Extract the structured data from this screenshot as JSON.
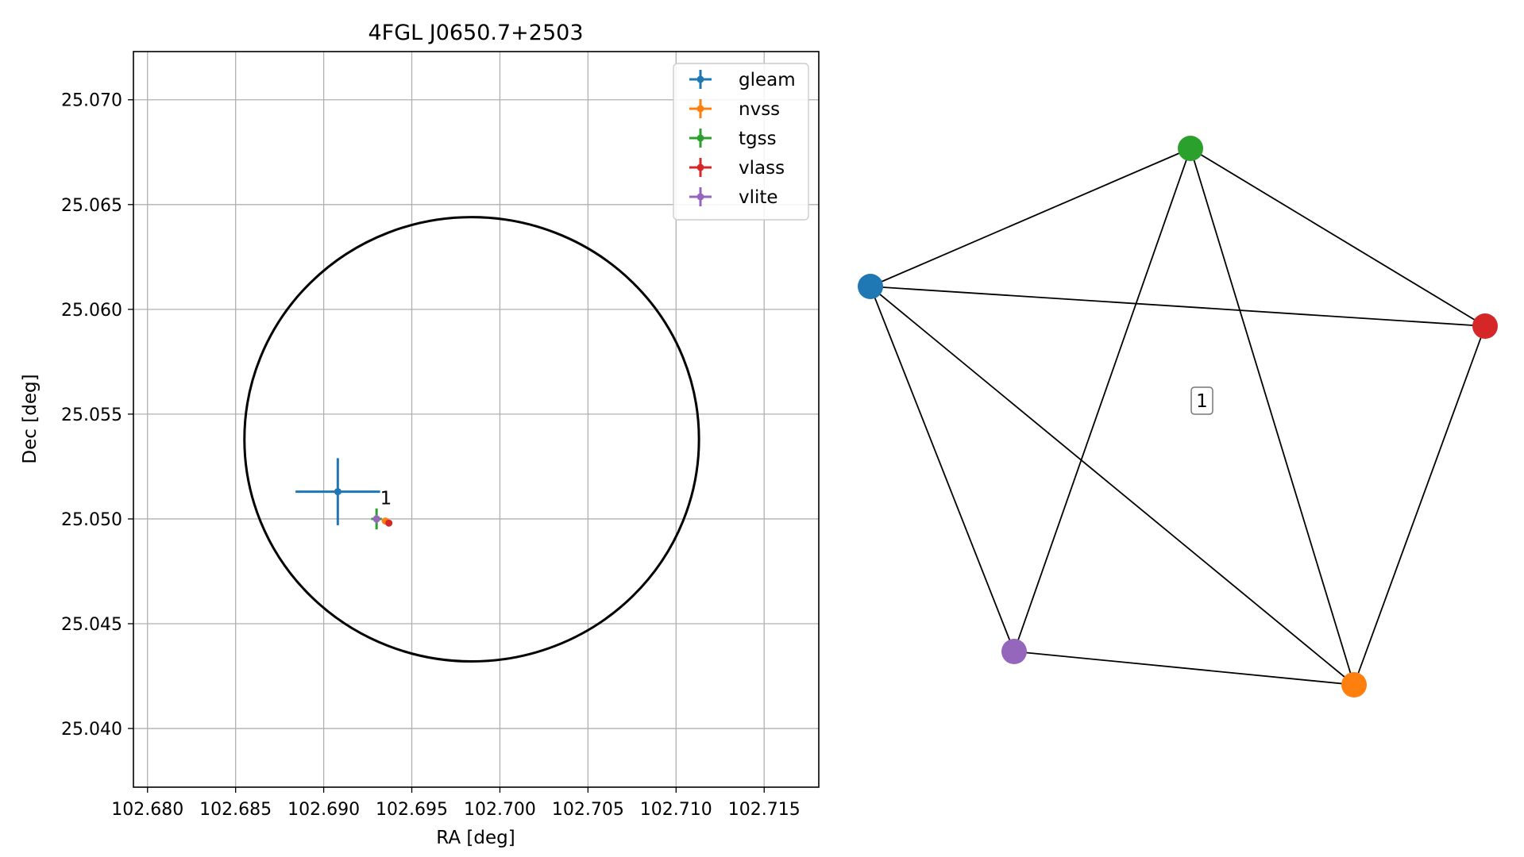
{
  "chart_data": [
    {
      "type": "scatter",
      "title": "4FGL J0650.7+2503",
      "xlabel": "RA [deg]",
      "ylabel": "Dec [deg]",
      "xlim": [
        102.6792,
        102.7181
      ],
      "ylim": [
        25.0372,
        25.0723
      ],
      "xticks": [
        102.68,
        102.685,
        102.69,
        102.695,
        102.7,
        102.705,
        102.71,
        102.715
      ],
      "xtick_labels": [
        "102.680",
        "102.685",
        "102.690",
        "102.695",
        "102.700",
        "102.705",
        "102.710",
        "102.715"
      ],
      "yticks": [
        25.04,
        25.045,
        25.05,
        25.055,
        25.06,
        25.065,
        25.07
      ],
      "ytick_labels": [
        "25.040",
        "25.045",
        "25.050",
        "25.055",
        "25.060",
        "25.065",
        "25.070"
      ],
      "grid": true,
      "legend_position": "top-right",
      "series": [
        {
          "name": "gleam",
          "color": "#1f77b4",
          "ra": 102.6908,
          "dec": 25.0513,
          "ra_err": 0.0024,
          "dec_err": 0.0016
        },
        {
          "name": "nvss",
          "color": "#ff7f0e",
          "ra": 102.6935,
          "dec": 25.0499,
          "ra_err": 0.0002,
          "dec_err": 0.0001
        },
        {
          "name": "tgss",
          "color": "#2ca02c",
          "ra": 102.693,
          "dec": 25.05,
          "ra_err": 0.0003,
          "dec_err": 0.0005
        },
        {
          "name": "vlass",
          "color": "#d62728",
          "ra": 102.6937,
          "dec": 25.0498,
          "ra_err": 0.0001,
          "dec_err": 0.0001
        },
        {
          "name": "vlite",
          "color": "#9467bd",
          "ra": 102.693,
          "dec": 25.05,
          "ra_err": 0.0002,
          "dec_err": 0.0002
        }
      ],
      "ellipse": {
        "center_ra": 102.6984,
        "center_dec": 25.0538,
        "half_width_ra": 0.0129,
        "half_height_dec": 0.0106,
        "color": "#000000"
      },
      "annotation": {
        "text": "1",
        "ra": 102.6932,
        "dec": 25.0507
      }
    },
    {
      "type": "network",
      "nodes": [
        {
          "id": "gleam",
          "color": "#1f77b4"
        },
        {
          "id": "tgss",
          "color": "#2ca02c"
        },
        {
          "id": "vlass",
          "color": "#d62728"
        },
        {
          "id": "nvss",
          "color": "#ff7f0e"
        },
        {
          "id": "vlite",
          "color": "#9467bd"
        }
      ],
      "edges": [
        [
          "gleam",
          "tgss"
        ],
        [
          "gleam",
          "vlass"
        ],
        [
          "gleam",
          "nvss"
        ],
        [
          "gleam",
          "vlite"
        ],
        [
          "tgss",
          "vlass"
        ],
        [
          "tgss",
          "nvss"
        ],
        [
          "tgss",
          "vlite"
        ],
        [
          "vlass",
          "nvss"
        ],
        [
          "nvss",
          "vlite"
        ]
      ],
      "cluster_label": "1"
    }
  ]
}
